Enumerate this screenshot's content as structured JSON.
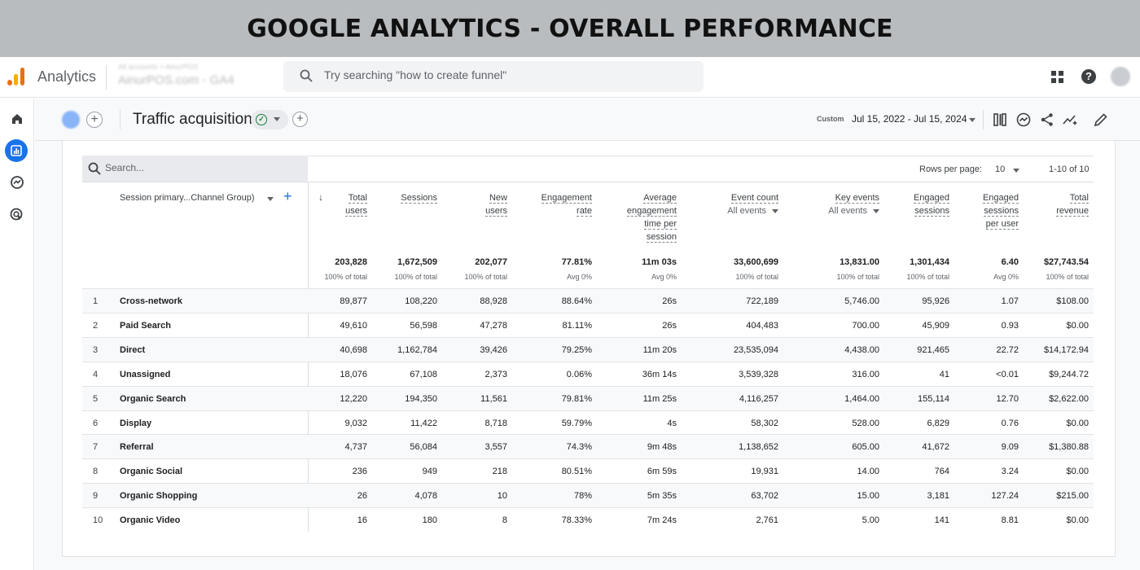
{
  "banner": {
    "title": "GOOGLE ANALYTICS - OVERALL PERFORMANCE"
  },
  "topbar": {
    "app_name": "Analytics",
    "account_line1": "All accounts > AinurPOS",
    "account_line2": "AinurPOS.com - GA4",
    "search_placeholder": "Try searching \"how to create funnel\"",
    "icons": [
      "apps-icon",
      "help-icon",
      "avatar"
    ]
  },
  "rail": {
    "items": [
      "home-icon",
      "reports-icon",
      "explore-icon",
      "advertising-icon"
    ]
  },
  "page": {
    "title": "Traffic acquisition",
    "date_label": "Custom",
    "date_range": "Jul 15, 2022 - Jul 15, 2024"
  },
  "table": {
    "search_placeholder": "Search...",
    "rows_per_page_label": "Rows per page:",
    "rows_per_page": "10",
    "range_text": "1-10 of 10",
    "dimension_header": "Session primary...Channel Group)",
    "columns": [
      {
        "lines": [
          "Total",
          "users"
        ],
        "total": "203,828",
        "total_sub": "100% of total"
      },
      {
        "lines": [
          "Sessions"
        ],
        "total": "1,672,509",
        "total_sub": "100% of total"
      },
      {
        "lines": [
          "New",
          "users"
        ],
        "total": "202,077",
        "total_sub": "100% of total"
      },
      {
        "lines": [
          "Engagement",
          "rate"
        ],
        "total": "77.81%",
        "total_sub": "Avg 0%"
      },
      {
        "lines": [
          "Average",
          "engagement",
          "time per",
          "session"
        ],
        "total": "11m 03s",
        "total_sub": "Avg 0%"
      },
      {
        "lines": [
          "Event count"
        ],
        "sub": "All events",
        "total": "33,600,699",
        "total_sub": "100% of total"
      },
      {
        "lines": [
          "Key events"
        ],
        "sub": "All events",
        "total": "13,831.00",
        "total_sub": "100% of total"
      },
      {
        "lines": [
          "Engaged",
          "sessions"
        ],
        "total": "1,301,434",
        "total_sub": "100% of total"
      },
      {
        "lines": [
          "Engaged",
          "sessions",
          "per user"
        ],
        "total": "6.40",
        "total_sub": "Avg 0%"
      },
      {
        "lines": [
          "Total",
          "revenue"
        ],
        "total": "$27,743.54",
        "total_sub": "100% of total"
      }
    ],
    "rows": [
      {
        "n": "1",
        "name": "Cross-network",
        "values": [
          "89,877",
          "108,220",
          "88,928",
          "88.64%",
          "26s",
          "722,189",
          "5,746.00",
          "95,926",
          "1.07",
          "$108.00"
        ]
      },
      {
        "n": "2",
        "name": "Paid Search",
        "values": [
          "49,610",
          "56,598",
          "47,278",
          "81.11%",
          "26s",
          "404,483",
          "700.00",
          "45,909",
          "0.93",
          "$0.00"
        ]
      },
      {
        "n": "3",
        "name": "Direct",
        "values": [
          "40,698",
          "1,162,784",
          "39,426",
          "79.25%",
          "11m 20s",
          "23,535,094",
          "4,438.00",
          "921,465",
          "22.72",
          "$14,172.94"
        ]
      },
      {
        "n": "4",
        "name": "Unassigned",
        "values": [
          "18,076",
          "67,108",
          "2,373",
          "0.06%",
          "36m 14s",
          "3,539,328",
          "316.00",
          "41",
          "<0.01",
          "$9,244.72"
        ]
      },
      {
        "n": "5",
        "name": "Organic Search",
        "values": [
          "12,220",
          "194,350",
          "11,561",
          "79.81%",
          "11m 25s",
          "4,116,257",
          "1,464.00",
          "155,114",
          "12.70",
          "$2,622.00"
        ]
      },
      {
        "n": "6",
        "name": "Display",
        "values": [
          "9,032",
          "11,422",
          "8,718",
          "59.79%",
          "4s",
          "58,302",
          "528.00",
          "6,829",
          "0.76",
          "$0.00"
        ]
      },
      {
        "n": "7",
        "name": "Referral",
        "values": [
          "4,737",
          "56,084",
          "3,557",
          "74.3%",
          "9m 48s",
          "1,138,652",
          "605.00",
          "41,672",
          "9.09",
          "$1,380.88"
        ]
      },
      {
        "n": "8",
        "name": "Organic Social",
        "values": [
          "236",
          "949",
          "218",
          "80.51%",
          "6m 59s",
          "19,931",
          "14.00",
          "764",
          "3.24",
          "$0.00"
        ]
      },
      {
        "n": "9",
        "name": "Organic Shopping",
        "values": [
          "26",
          "4,078",
          "10",
          "78%",
          "5m 35s",
          "63,702",
          "15.00",
          "3,181",
          "127.24",
          "$215.00"
        ]
      },
      {
        "n": "10",
        "name": "Organic Video",
        "values": [
          "16",
          "180",
          "8",
          "78.33%",
          "7m 24s",
          "2,761",
          "5.00",
          "141",
          "8.81",
          "$0.00"
        ]
      }
    ]
  }
}
